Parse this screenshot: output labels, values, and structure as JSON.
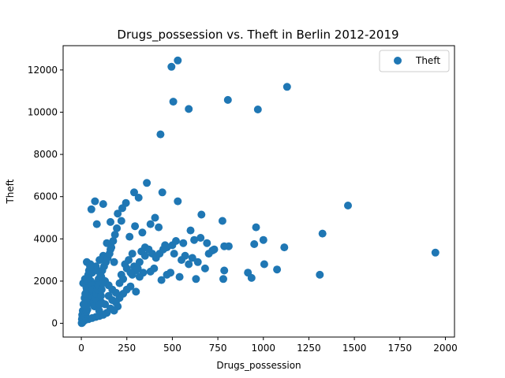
{
  "chart_data": {
    "type": "scatter",
    "title": "Drugs_possession vs. Theft in Berlin 2012-2019",
    "xlabel": "Drugs_possession",
    "ylabel": "Theft",
    "xlim": [
      -100,
      2050
    ],
    "ylim": [
      -650,
      13150
    ],
    "x_ticks": [
      0,
      250,
      500,
      750,
      1000,
      1250,
      1500,
      1750,
      2000
    ],
    "y_ticks": [
      0,
      2000,
      4000,
      6000,
      8000,
      10000,
      12000
    ],
    "grid": false,
    "legend_position": "top-right",
    "marker_color": "#1f77b4",
    "series": [
      {
        "name": "Theft",
        "points": [
          [
            530,
            12450
          ],
          [
            495,
            12150
          ],
          [
            1130,
            11200
          ],
          [
            805,
            10580
          ],
          [
            505,
            10500
          ],
          [
            590,
            10150
          ],
          [
            970,
            10130
          ],
          [
            435,
            8950
          ],
          [
            360,
            6650
          ],
          [
            290,
            6200
          ],
          [
            445,
            6200
          ],
          [
            530,
            5780
          ],
          [
            1465,
            5580
          ],
          [
            75,
            5780
          ],
          [
            120,
            5650
          ],
          [
            245,
            5700
          ],
          [
            55,
            5400
          ],
          [
            225,
            5450
          ],
          [
            315,
            5950
          ],
          [
            660,
            5150
          ],
          [
            200,
            5200
          ],
          [
            85,
            4700
          ],
          [
            160,
            4800
          ],
          [
            220,
            4850
          ],
          [
            405,
            5000
          ],
          [
            775,
            4850
          ],
          [
            960,
            4550
          ],
          [
            295,
            4600
          ],
          [
            1325,
            4250
          ],
          [
            655,
            4050
          ],
          [
            335,
            4300
          ],
          [
            265,
            4100
          ],
          [
            425,
            4550
          ],
          [
            380,
            4700
          ],
          [
            600,
            4400
          ],
          [
            1000,
            3950
          ],
          [
            950,
            3750
          ],
          [
            810,
            3650
          ],
          [
            785,
            3650
          ],
          [
            1115,
            3600
          ],
          [
            620,
            3950
          ],
          [
            560,
            3800
          ],
          [
            690,
            3800
          ],
          [
            460,
            3700
          ],
          [
            500,
            3700
          ],
          [
            1945,
            3350
          ],
          [
            720,
            3450
          ],
          [
            1005,
            2800
          ],
          [
            1075,
            2550
          ],
          [
            935,
            2150
          ],
          [
            915,
            2400
          ],
          [
            785,
            2500
          ],
          [
            780,
            2100
          ],
          [
            1310,
            2300
          ],
          [
            630,
            2100
          ],
          [
            590,
            2800
          ],
          [
            540,
            2200
          ],
          [
            520,
            3900
          ],
          [
            470,
            2300
          ],
          [
            440,
            2050
          ],
          [
            400,
            2600
          ],
          [
            380,
            2450
          ],
          [
            340,
            2400
          ],
          [
            320,
            2200
          ],
          [
            300,
            2500
          ],
          [
            280,
            2300
          ],
          [
            260,
            3000
          ],
          [
            240,
            2800
          ],
          [
            220,
            2300
          ],
          [
            300,
            1500
          ],
          [
            270,
            1750
          ],
          [
            250,
            1600
          ],
          [
            230,
            1400
          ],
          [
            210,
            1200
          ],
          [
            280,
            3300
          ],
          [
            350,
            3200
          ],
          [
            320,
            2900
          ],
          [
            180,
            2900
          ],
          [
            160,
            3500
          ],
          [
            140,
            3800
          ],
          [
            120,
            3200
          ],
          [
            100,
            3000
          ],
          [
            80,
            2700
          ],
          [
            60,
            2400
          ],
          [
            40,
            2200
          ],
          [
            20,
            2100
          ],
          [
            10,
            1900
          ],
          [
            30,
            1600
          ],
          [
            50,
            1400
          ],
          [
            70,
            1250
          ],
          [
            90,
            1150
          ],
          [
            110,
            1000
          ],
          [
            130,
            900
          ],
          [
            150,
            1300
          ],
          [
            170,
            1100
          ],
          [
            190,
            1000
          ],
          [
            200,
            800
          ],
          [
            180,
            600
          ],
          [
            160,
            700
          ],
          [
            140,
            500
          ],
          [
            120,
            400
          ],
          [
            100,
            350
          ],
          [
            80,
            300
          ],
          [
            60,
            250
          ],
          [
            40,
            200
          ],
          [
            20,
            150
          ],
          [
            10,
            80
          ],
          [
            5,
            30
          ],
          [
            2,
            10
          ],
          [
            15,
            500
          ],
          [
            25,
            700
          ],
          [
            35,
            900
          ],
          [
            45,
            1100
          ],
          [
            55,
            1300
          ],
          [
            65,
            1500
          ],
          [
            75,
            1700
          ],
          [
            85,
            1900
          ],
          [
            95,
            2100
          ],
          [
            105,
            2300
          ],
          [
            115,
            2500
          ],
          [
            125,
            2700
          ],
          [
            135,
            2900
          ],
          [
            145,
            3100
          ],
          [
            155,
            3300
          ],
          [
            165,
            3600
          ],
          [
            175,
            3900
          ],
          [
            185,
            4200
          ],
          [
            195,
            4500
          ],
          [
            30,
            2900
          ],
          [
            50,
            2800
          ],
          [
            70,
            2600
          ],
          [
            90,
            2500
          ],
          [
            110,
            2200
          ],
          [
            130,
            2000
          ],
          [
            150,
            1800
          ],
          [
            170,
            1600
          ],
          [
            190,
            1450
          ],
          [
            210,
            1900
          ],
          [
            230,
            2100
          ],
          [
            250,
            2600
          ],
          [
            270,
            2400
          ],
          [
            290,
            2700
          ],
          [
            310,
            2600
          ],
          [
            330,
            3400
          ],
          [
            350,
            3600
          ],
          [
            370,
            3500
          ],
          [
            390,
            3300
          ],
          [
            410,
            3100
          ],
          [
            430,
            3300
          ],
          [
            450,
            3500
          ],
          [
            470,
            3600
          ],
          [
            490,
            2400
          ],
          [
            510,
            3300
          ],
          [
            550,
            3000
          ],
          [
            570,
            3200
          ],
          [
            610,
            3100
          ],
          [
            640,
            2900
          ],
          [
            680,
            2600
          ],
          [
            700,
            3300
          ],
          [
            730,
            3500
          ],
          [
            5,
            400
          ],
          [
            8,
            600
          ],
          [
            12,
            900
          ],
          [
            18,
            1200
          ],
          [
            22,
            1400
          ],
          [
            28,
            1700
          ],
          [
            32,
            2000
          ],
          [
            38,
            2300
          ],
          [
            42,
            2500
          ],
          [
            48,
            2700
          ],
          [
            52,
            2000
          ],
          [
            58,
            1800
          ],
          [
            62,
            1600
          ],
          [
            68,
            1000
          ],
          [
            72,
            800
          ],
          [
            78,
            1200
          ],
          [
            82,
            1400
          ],
          [
            88,
            1600
          ],
          [
            92,
            1800
          ],
          [
            98,
            600
          ],
          [
            102,
            900
          ],
          [
            108,
            1300
          ],
          [
            112,
            1600
          ],
          [
            118,
            1900
          ],
          [
            3,
            200
          ],
          [
            6,
            300
          ],
          [
            9,
            450
          ],
          [
            14,
            250
          ],
          [
            18,
            350
          ],
          [
            24,
            450
          ],
          [
            28,
            550
          ],
          [
            33,
            650
          ]
        ]
      }
    ]
  }
}
